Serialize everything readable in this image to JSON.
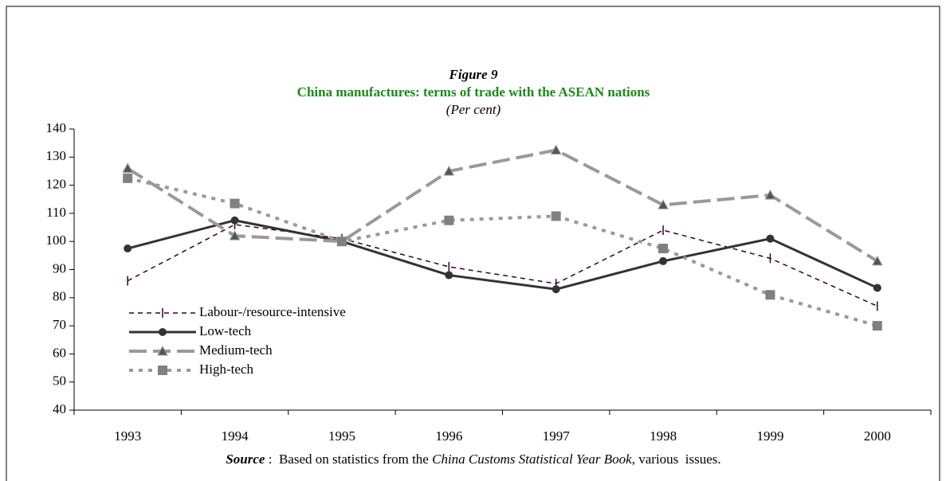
{
  "chart_data": {
    "type": "line",
    "title": "Figure 9",
    "subtitle": "China manufactures: terms of trade with the ASEAN nations",
    "unit_note": "(Per cent)",
    "categories": [
      "1993",
      "1994",
      "1995",
      "1996",
      "1997",
      "1998",
      "1999",
      "2000"
    ],
    "ylim": [
      40,
      140
    ],
    "yticks": [
      40,
      50,
      60,
      70,
      80,
      90,
      100,
      110,
      120,
      130,
      140
    ],
    "series": [
      {
        "name": "Labour-/resource-intensive",
        "color": "#330033",
        "values": [
          86,
          106,
          101,
          91,
          85,
          104,
          94,
          77
        ]
      },
      {
        "name": "Low-tech",
        "color": "#333333",
        "values": [
          97.5,
          107.5,
          100,
          88,
          83,
          93,
          101,
          83.5
        ]
      },
      {
        "name": "Medium-tech",
        "color": "#999999",
        "values": [
          126,
          102,
          100,
          125,
          132.5,
          113,
          116.5,
          93
        ]
      },
      {
        "name": "High-tech",
        "color": "#999999",
        "values": [
          122.5,
          113.5,
          100,
          107.5,
          109,
          97.5,
          81,
          70
        ]
      }
    ],
    "legend": "left",
    "source": {
      "label": "Source",
      "text1": " :  Based on statistics from the ",
      "book": "China Customs Statistical Year Book",
      "text2": ", various  issues."
    }
  }
}
